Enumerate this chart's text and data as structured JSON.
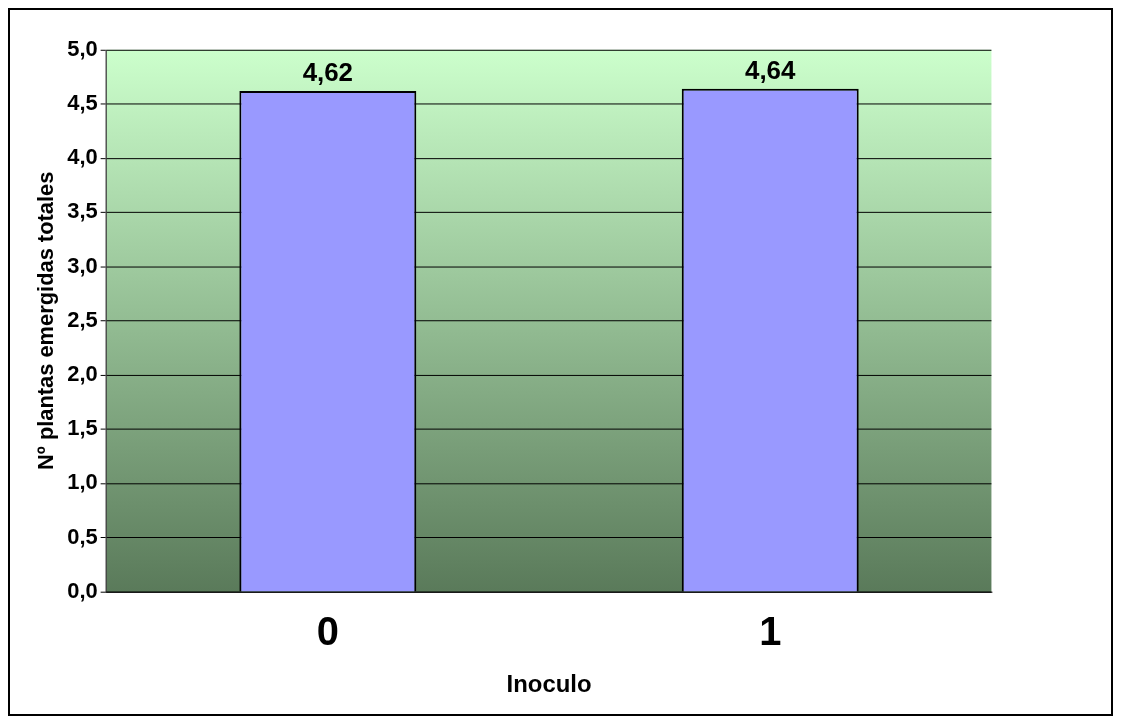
{
  "chart_data": {
    "type": "bar",
    "xlabel": "Inoculo",
    "ylabel": "Nº plantas emergidas totales",
    "categories": [
      "0",
      "1"
    ],
    "values": [
      4.62,
      4.64
    ],
    "color": "#9999ff",
    "value_labels": [
      "4,62",
      "4,64"
    ],
    "ylim": [
      0,
      5
    ],
    "yticks": [
      {
        "value": 0,
        "label": "0,0"
      },
      {
        "value": 0.5,
        "label": "0,5"
      },
      {
        "value": 1,
        "label": "1,0"
      },
      {
        "value": 1.5,
        "label": "1,5"
      },
      {
        "value": 2,
        "label": "2,0"
      },
      {
        "value": 2.5,
        "label": "2,5"
      },
      {
        "value": 3,
        "label": "3,0"
      },
      {
        "value": 3.5,
        "label": "3,5"
      },
      {
        "value": 4,
        "label": "4,0"
      },
      {
        "value": 4.5,
        "label": "4,5"
      },
      {
        "value": 5,
        "label": "5,0"
      }
    ],
    "grid": "y",
    "legend": false
  }
}
